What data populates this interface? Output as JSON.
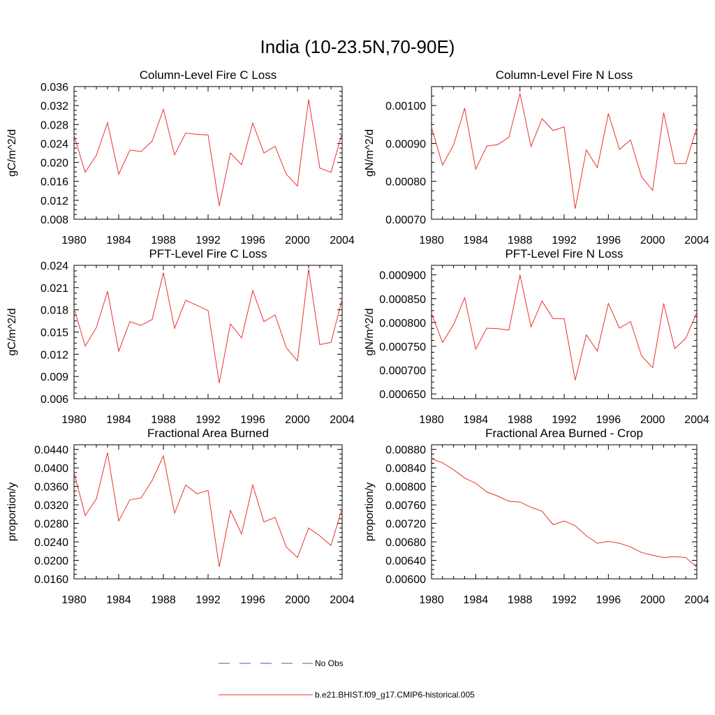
{
  "figure": {
    "title": "India (10-23.5N,70-90E)",
    "legend": [
      {
        "label": "No Obs",
        "color": "#4a5ba8",
        "style": "dashed"
      },
      {
        "label": "b.e21.BHIST.f09_g17.CMIP6-historical.005",
        "color": "#e8322c",
        "style": "solid"
      }
    ]
  },
  "chart_data": [
    {
      "type": "line",
      "title": "Column-Level Fire C Loss",
      "xlabel": "",
      "ylabel": "gC/m^2/d",
      "xlim": [
        1980,
        2004
      ],
      "ylim": [
        0.008,
        0.036
      ],
      "xticks": [
        1980,
        1984,
        1988,
        1992,
        1996,
        2000,
        2004
      ],
      "xtick_labels": [
        "1980",
        "1984",
        "1988",
        "1992",
        "1996",
        "2000",
        "2004"
      ],
      "yticks": [
        0.008,
        0.012,
        0.016,
        0.02,
        0.024,
        0.028,
        0.032,
        0.036
      ],
      "ytick_labels": [
        "0.008",
        "0.012",
        "0.016",
        "0.020",
        "0.024",
        "0.028",
        "0.032",
        "0.036"
      ],
      "x": [
        1980,
        1981,
        1982,
        1983,
        1984,
        1985,
        1986,
        1987,
        1988,
        1989,
        1990,
        1991,
        1992,
        1993,
        1994,
        1995,
        1996,
        1997,
        1998,
        1999,
        2000,
        2001,
        2002,
        2003,
        2004
      ],
      "series": [
        {
          "name": "b.e21.BHIST.f09_g17.CMIP6-historical.005",
          "color": "#e8322c",
          "values": [
            0.0257,
            0.0179,
            0.0215,
            0.0284,
            0.0175,
            0.0226,
            0.0223,
            0.0245,
            0.0312,
            0.0216,
            0.0262,
            0.0259,
            0.0258,
            0.0108,
            0.022,
            0.0195,
            0.0283,
            0.022,
            0.0234,
            0.0175,
            0.015,
            0.0333,
            0.0188,
            0.0179,
            0.0262
          ]
        }
      ]
    },
    {
      "type": "line",
      "title": "Column-Level Fire N Loss",
      "xlabel": "",
      "ylabel": "gN/m^2/d",
      "xlim": [
        1980,
        2004
      ],
      "ylim": [
        0.0007,
        0.00105
      ],
      "xticks": [
        1980,
        1984,
        1988,
        1992,
        1996,
        2000,
        2004
      ],
      "xtick_labels": [
        "1980",
        "1984",
        "1988",
        "1992",
        "1996",
        "2000",
        "2004"
      ],
      "yticks": [
        0.0007,
        0.0008,
        0.0009,
        0.001
      ],
      "ytick_labels": [
        "0.00070",
        "0.00080",
        "0.00090",
        "0.00100"
      ],
      "x": [
        1980,
        1981,
        1982,
        1983,
        1984,
        1985,
        1986,
        1987,
        1988,
        1989,
        1990,
        1991,
        1992,
        1993,
        1994,
        1995,
        1996,
        1997,
        1998,
        1999,
        2000,
        2001,
        2002,
        2003,
        2004
      ],
      "series": [
        {
          "name": "b.e21.BHIST.f09_g17.CMIP6-historical.005",
          "color": "#e8322c",
          "values": [
            0.000942,
            0.000843,
            0.000897,
            0.000993,
            0.000832,
            0.000893,
            0.000897,
            0.000916,
            0.001032,
            0.000892,
            0.000965,
            0.000934,
            0.000944,
            0.000728,
            0.000883,
            0.000836,
            0.000979,
            0.000884,
            0.000909,
            0.000812,
            0.000776,
            0.000981,
            0.000847,
            0.000847,
            0.000943
          ]
        }
      ]
    },
    {
      "type": "line",
      "title": "PFT-Level Fire C Loss",
      "xlabel": "",
      "ylabel": "gC/m^2/d",
      "xlim": [
        1980,
        2004
      ],
      "ylim": [
        0.006,
        0.024
      ],
      "xticks": [
        1980,
        1984,
        1988,
        1992,
        1996,
        2000,
        2004
      ],
      "xtick_labels": [
        "1980",
        "1984",
        "1988",
        "1992",
        "1996",
        "2000",
        "2004"
      ],
      "yticks": [
        0.006,
        0.009,
        0.012,
        0.015,
        0.018,
        0.021,
        0.024
      ],
      "ytick_labels": [
        "0.006",
        "0.009",
        "0.012",
        "0.015",
        "0.018",
        "0.021",
        "0.024"
      ],
      "x": [
        1980,
        1981,
        1982,
        1983,
        1984,
        1985,
        1986,
        1987,
        1988,
        1989,
        1990,
        1991,
        1992,
        1993,
        1994,
        1995,
        1996,
        1997,
        1998,
        1999,
        2000,
        2001,
        2002,
        2003,
        2004
      ],
      "series": [
        {
          "name": "b.e21.BHIST.f09_g17.CMIP6-historical.005",
          "color": "#e8322c",
          "values": [
            0.0182,
            0.0131,
            0.0156,
            0.0205,
            0.0124,
            0.0164,
            0.0159,
            0.0167,
            0.023,
            0.0155,
            0.0193,
            0.0186,
            0.0179,
            0.0081,
            0.0161,
            0.0142,
            0.0206,
            0.0164,
            0.0173,
            0.0129,
            0.0111,
            0.0235,
            0.0133,
            0.0136,
            0.0194
          ]
        }
      ]
    },
    {
      "type": "line",
      "title": "PFT-Level Fire N Loss",
      "xlabel": "",
      "ylabel": "gN/m^2/d",
      "xlim": [
        1980,
        2004
      ],
      "ylim": [
        0.00064,
        0.00092
      ],
      "xticks": [
        1980,
        1984,
        1988,
        1992,
        1996,
        2000,
        2004
      ],
      "xtick_labels": [
        "1980",
        "1984",
        "1988",
        "1992",
        "1996",
        "2000",
        "2004"
      ],
      "yticks": [
        0.00065,
        0.0007,
        0.00075,
        0.0008,
        0.00085,
        0.0009
      ],
      "ytick_labels": [
        "0.000650",
        "0.000700",
        "0.000750",
        "0.000800",
        "0.000850",
        "0.000900"
      ],
      "x": [
        1980,
        1981,
        1982,
        1983,
        1984,
        1985,
        1986,
        1987,
        1988,
        1989,
        1990,
        1991,
        1992,
        1993,
        1994,
        1995,
        1996,
        1997,
        1998,
        1999,
        2000,
        2001,
        2002,
        2003,
        2004
      ],
      "series": [
        {
          "name": "b.e21.BHIST.f09_g17.CMIP6-historical.005",
          "color": "#e8322c",
          "values": [
            0.000819,
            0.000758,
            0.000796,
            0.000852,
            0.000744,
            0.000788,
            0.000787,
            0.000784,
            0.0009,
            0.000791,
            0.000845,
            0.000808,
            0.000808,
            0.000679,
            0.000774,
            0.00074,
            0.00084,
            0.000788,
            0.000802,
            0.00073,
            0.000705,
            0.00084,
            0.000745,
            0.000767,
            0.000822
          ]
        }
      ]
    },
    {
      "type": "line",
      "title": "Fractional Area Burned",
      "xlabel": "",
      "ylabel": "proportion/y",
      "xlim": [
        1980,
        2004
      ],
      "ylim": [
        0.016,
        0.045
      ],
      "xticks": [
        1980,
        1984,
        1988,
        1992,
        1996,
        2000,
        2004
      ],
      "xtick_labels": [
        "1980",
        "1984",
        "1988",
        "1992",
        "1996",
        "2000",
        "2004"
      ],
      "yticks": [
        0.016,
        0.02,
        0.024,
        0.028,
        0.032,
        0.036,
        0.04,
        0.044
      ],
      "ytick_labels": [
        "0.0160",
        "0.0200",
        "0.0240",
        "0.0280",
        "0.0320",
        "0.0360",
        "0.0400",
        "0.0440"
      ],
      "x": [
        1980,
        1981,
        1982,
        1983,
        1984,
        1985,
        1986,
        1987,
        1988,
        1989,
        1990,
        1991,
        1992,
        1993,
        1994,
        1995,
        1996,
        1997,
        1998,
        1999,
        2000,
        2001,
        2002,
        2003,
        2004
      ],
      "series": [
        {
          "name": "b.e21.BHIST.f09_g17.CMIP6-historical.005",
          "color": "#e8322c",
          "values": [
            0.039,
            0.0297,
            0.0333,
            0.0433,
            0.0285,
            0.0331,
            0.0335,
            0.0373,
            0.0426,
            0.0302,
            0.0363,
            0.0344,
            0.0351,
            0.0186,
            0.0308,
            0.0257,
            0.0363,
            0.0283,
            0.0293,
            0.0229,
            0.0206,
            0.027,
            0.0253,
            0.0232,
            0.0313
          ]
        }
      ]
    },
    {
      "type": "line",
      "title": "Fractional Area Burned - Crop",
      "xlabel": "",
      "ylabel": "proportion/y",
      "xlim": [
        1980,
        2004
      ],
      "ylim": [
        0.006,
        0.0089
      ],
      "xticks": [
        1980,
        1984,
        1988,
        1992,
        1996,
        2000,
        2004
      ],
      "xtick_labels": [
        "1980",
        "1984",
        "1988",
        "1992",
        "1996",
        "2000",
        "2004"
      ],
      "yticks": [
        0.006,
        0.0064,
        0.0068,
        0.0072,
        0.0076,
        0.008,
        0.0084,
        0.0088
      ],
      "ytick_labels": [
        "0.00600",
        "0.00640",
        "0.00680",
        "0.00720",
        "0.00760",
        "0.00800",
        "0.00840",
        "0.00880"
      ],
      "x": [
        1980,
        1981,
        1982,
        1983,
        1984,
        1985,
        1986,
        1987,
        1988,
        1989,
        1990,
        1991,
        1992,
        1993,
        1994,
        1995,
        1996,
        1997,
        1998,
        1999,
        2000,
        2001,
        2002,
        2003,
        2004
      ],
      "series": [
        {
          "name": "b.e21.BHIST.f09_g17.CMIP6-historical.005",
          "color": "#e8322c",
          "values": [
            0.0086,
            0.00851,
            0.00836,
            0.00818,
            0.00807,
            0.00788,
            0.00779,
            0.00768,
            0.00766,
            0.00755,
            0.00746,
            0.00717,
            0.00725,
            0.00715,
            0.00693,
            0.00677,
            0.00681,
            0.00677,
            0.00669,
            0.00657,
            0.00651,
            0.00646,
            0.00648,
            0.00646,
            0.00625
          ]
        }
      ]
    }
  ]
}
